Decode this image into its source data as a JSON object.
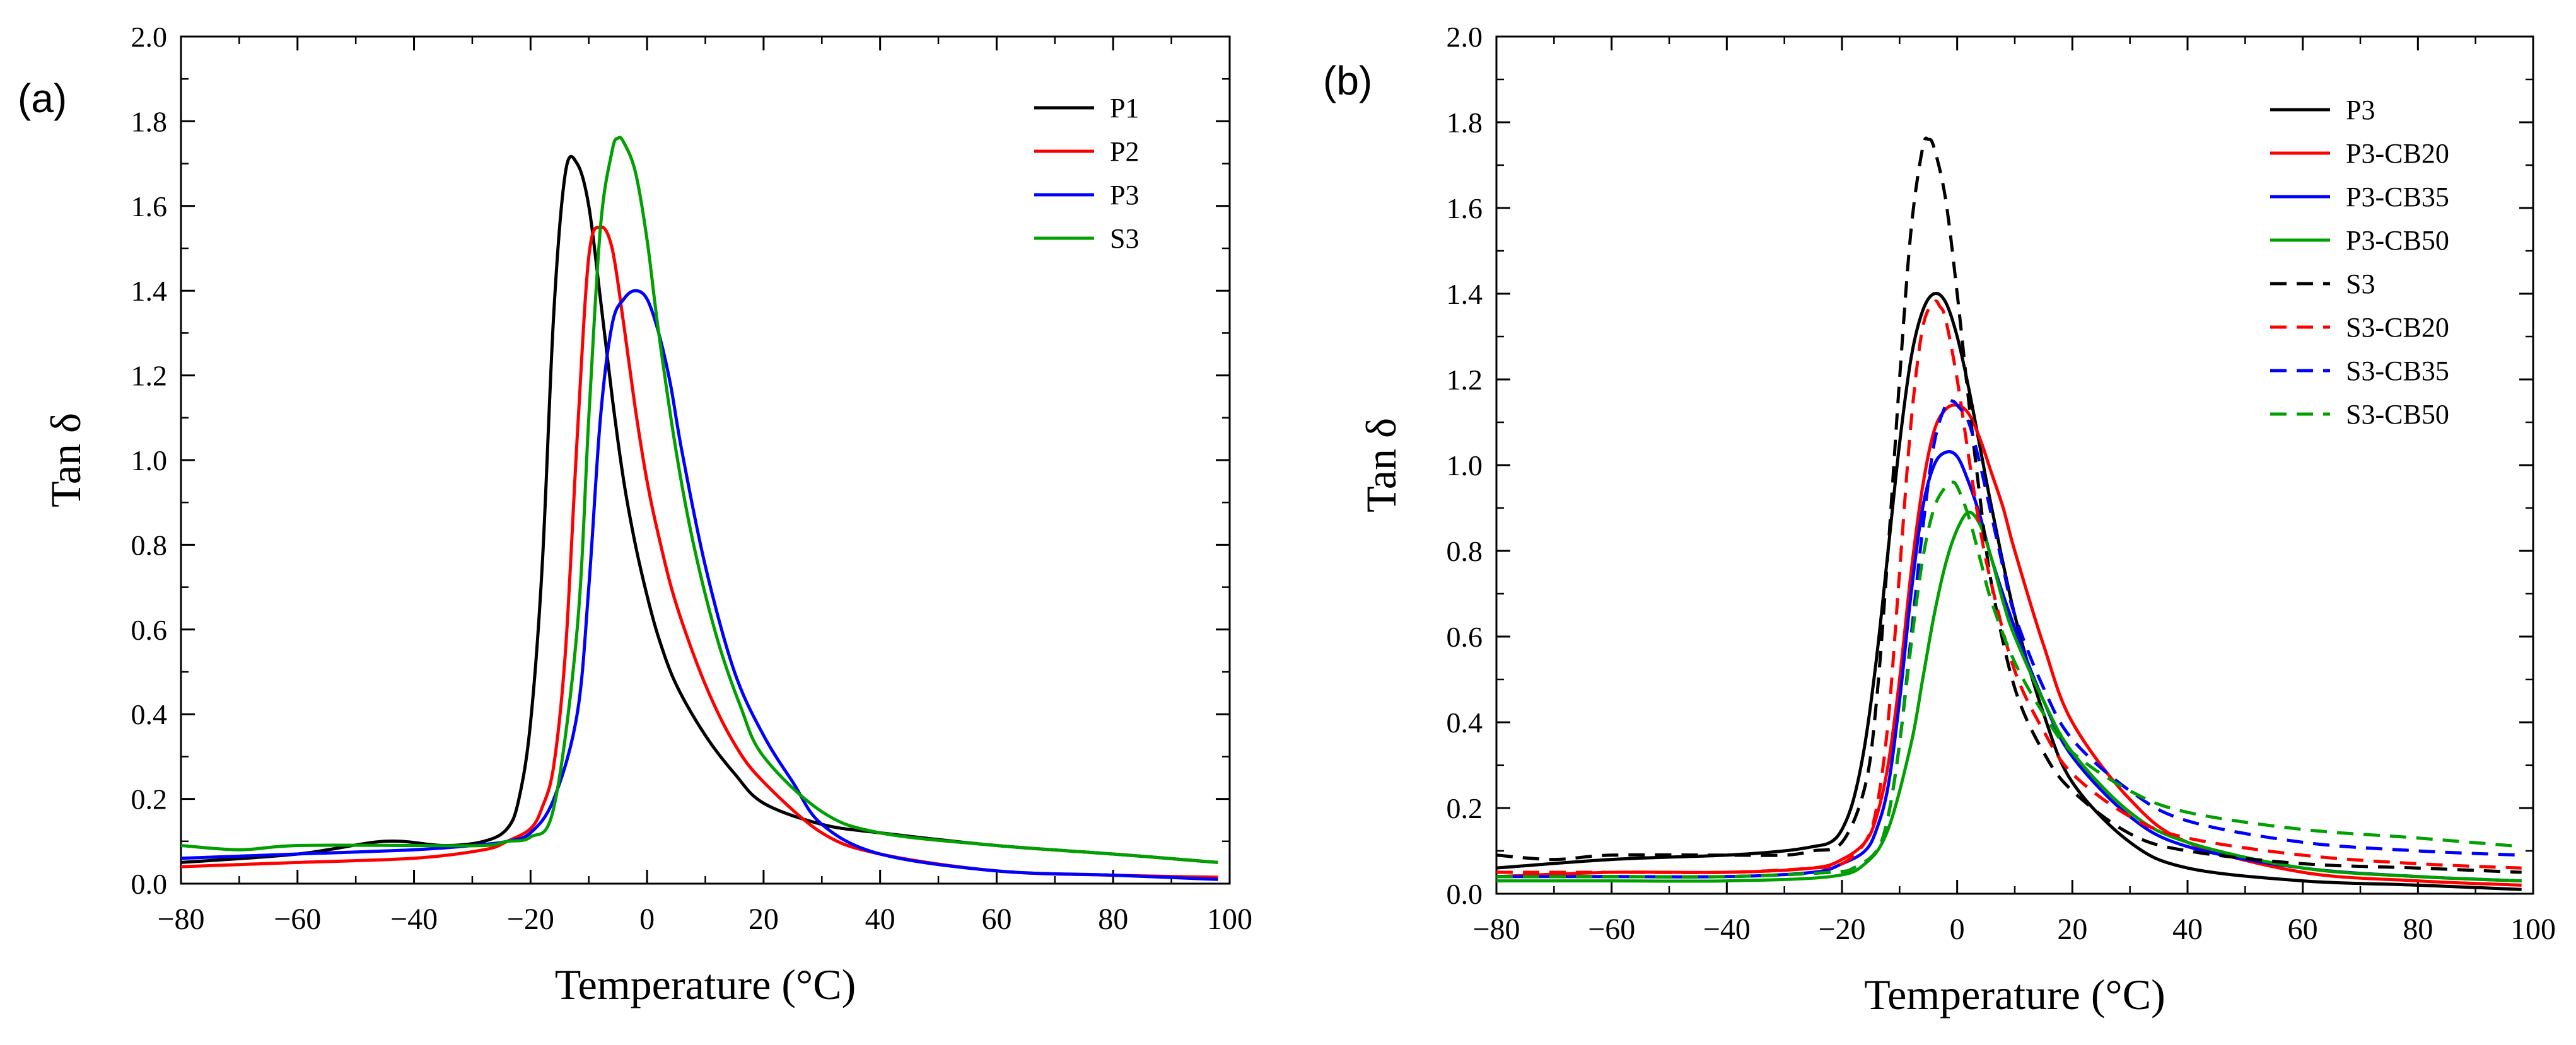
{
  "chart_data": [
    {
      "type": "line",
      "panel_label": "(a)",
      "xlabel": "Temperature (°C)",
      "ylabel": "Tan δ",
      "xlim": [
        -80,
        100
      ],
      "ylim": [
        0,
        2.0
      ],
      "xticks": [
        "−80",
        "−60",
        "−40",
        "−20",
        "0",
        "20",
        "40",
        "60",
        "80",
        "100"
      ],
      "yticks": [
        "0.0",
        "0.2",
        "0.4",
        "0.6",
        "0.8",
        "1.0",
        "1.2",
        "1.4",
        "1.6",
        "1.8",
        "2.0"
      ],
      "legend_position": "top-right",
      "series": [
        {
          "name": "P1",
          "color": "#000000",
          "dash": false,
          "x": [
            -80,
            -60,
            -45,
            -35,
            -28,
            -24,
            -22,
            -20,
            -18,
            -16,
            -14,
            -12,
            -10,
            -8,
            -6,
            -4,
            -2,
            0,
            2,
            5,
            10,
            15,
            20,
            30,
            40,
            60,
            80,
            98
          ],
          "y": [
            0.05,
            0.07,
            0.1,
            0.09,
            0.1,
            0.13,
            0.2,
            0.38,
            0.75,
            1.35,
            1.68,
            1.7,
            1.6,
            1.38,
            1.15,
            0.95,
            0.8,
            0.68,
            0.58,
            0.47,
            0.35,
            0.26,
            0.19,
            0.14,
            0.12,
            0.09,
            0.07,
            0.05
          ]
        },
        {
          "name": "P2",
          "color": "#ff0000",
          "dash": false,
          "x": [
            -80,
            -60,
            -40,
            -28,
            -24,
            -20,
            -18,
            -16,
            -14,
            -12,
            -10,
            -8,
            -6,
            -4,
            -2,
            0,
            2,
            5,
            10,
            15,
            20,
            30,
            40,
            60,
            80,
            98
          ],
          "y": [
            0.04,
            0.05,
            0.06,
            0.08,
            0.1,
            0.13,
            0.18,
            0.28,
            0.55,
            1.05,
            1.48,
            1.55,
            1.5,
            1.32,
            1.12,
            0.95,
            0.82,
            0.66,
            0.47,
            0.33,
            0.24,
            0.12,
            0.07,
            0.03,
            0.02,
            0.015
          ]
        },
        {
          "name": "P3",
          "color": "#0000ff",
          "dash": false,
          "x": [
            -80,
            -60,
            -40,
            -30,
            -24,
            -20,
            -16,
            -12,
            -10,
            -8,
            -6,
            -4,
            -2,
            0,
            2,
            4,
            6,
            10,
            15,
            20,
            25,
            30,
            40,
            60,
            80,
            98
          ],
          "y": [
            0.06,
            0.07,
            0.08,
            0.09,
            0.1,
            0.12,
            0.2,
            0.4,
            0.7,
            1.1,
            1.32,
            1.38,
            1.4,
            1.38,
            1.3,
            1.18,
            1.02,
            0.75,
            0.5,
            0.35,
            0.24,
            0.14,
            0.07,
            0.03,
            0.02,
            0.01
          ]
        },
        {
          "name": "S3",
          "color": "#00a000",
          "dash": false,
          "x": [
            -80,
            -70,
            -60,
            -40,
            -28,
            -24,
            -20,
            -16,
            -12,
            -10,
            -8,
            -6,
            -5,
            -4,
            -2,
            0,
            2,
            5,
            8,
            12,
            16,
            20,
            30,
            40,
            60,
            80,
            98
          ],
          "y": [
            0.09,
            0.08,
            0.09,
            0.09,
            0.09,
            0.1,
            0.11,
            0.18,
            0.6,
            1.1,
            1.55,
            1.73,
            1.76,
            1.75,
            1.68,
            1.52,
            1.3,
            1.02,
            0.8,
            0.58,
            0.42,
            0.3,
            0.17,
            0.12,
            0.09,
            0.07,
            0.05
          ]
        }
      ]
    },
    {
      "type": "line",
      "panel_label": "(b)",
      "xlabel": "Temperature (°C)",
      "ylabel": "Tan δ",
      "xlim": [
        -80,
        100
      ],
      "ylim": [
        0,
        2.0
      ],
      "xticks": [
        "−80",
        "−60",
        "−40",
        "−20",
        "0",
        "20",
        "40",
        "60",
        "80",
        "100"
      ],
      "yticks": [
        "0.0",
        "0.2",
        "0.4",
        "0.6",
        "0.8",
        "1.0",
        "1.2",
        "1.4",
        "1.6",
        "1.8",
        "2.0"
      ],
      "legend_position": "top-right",
      "series": [
        {
          "name": "P3",
          "color": "#000000",
          "dash": false,
          "x": [
            -80,
            -60,
            -40,
            -30,
            -25,
            -22,
            -20,
            -18,
            -16,
            -14,
            -12,
            -10,
            -8,
            -6,
            -4,
            -2,
            0,
            2,
            4,
            6,
            10,
            15,
            20,
            30,
            40,
            60,
            80,
            98
          ],
          "y": [
            0.06,
            0.08,
            0.09,
            0.1,
            0.11,
            0.12,
            0.15,
            0.22,
            0.35,
            0.55,
            0.8,
            1.05,
            1.25,
            1.36,
            1.4,
            1.38,
            1.3,
            1.18,
            1.04,
            0.9,
            0.65,
            0.42,
            0.26,
            0.12,
            0.06,
            0.03,
            0.02,
            0.01
          ]
        },
        {
          "name": "P3-CB20",
          "color": "#ff0000",
          "dash": false,
          "x": [
            -80,
            -60,
            -40,
            -25,
            -20,
            -16,
            -14,
            -12,
            -10,
            -8,
            -6,
            -4,
            -2,
            0,
            2,
            4,
            6,
            8,
            10,
            15,
            20,
            30,
            40,
            60,
            80,
            98
          ],
          "y": [
            0.04,
            0.05,
            0.05,
            0.06,
            0.08,
            0.12,
            0.18,
            0.3,
            0.5,
            0.75,
            0.95,
            1.08,
            1.13,
            1.14,
            1.12,
            1.06,
            0.98,
            0.9,
            0.8,
            0.58,
            0.4,
            0.22,
            0.12,
            0.05,
            0.03,
            0.02
          ]
        },
        {
          "name": "P3-CB35",
          "color": "#0000ff",
          "dash": false,
          "x": [
            -80,
            -60,
            -40,
            -25,
            -20,
            -16,
            -14,
            -12,
            -10,
            -8,
            -6,
            -4,
            -2,
            0,
            2,
            4,
            6,
            10,
            15,
            20,
            30,
            40,
            60,
            80,
            98
          ],
          "y": [
            0.04,
            0.04,
            0.04,
            0.05,
            0.07,
            0.1,
            0.15,
            0.25,
            0.45,
            0.7,
            0.9,
            1.0,
            1.03,
            1.02,
            0.96,
            0.88,
            0.78,
            0.62,
            0.45,
            0.32,
            0.18,
            0.11,
            0.06,
            0.04,
            0.03
          ]
        },
        {
          "name": "P3-CB50",
          "color": "#00a000",
          "dash": false,
          "x": [
            -80,
            -60,
            -40,
            -22,
            -16,
            -12,
            -8,
            -6,
            -4,
            -2,
            0,
            2,
            4,
            6,
            8,
            10,
            15,
            20,
            30,
            40,
            60,
            80,
            98
          ],
          "y": [
            0.03,
            0.03,
            0.03,
            0.04,
            0.07,
            0.15,
            0.35,
            0.5,
            0.65,
            0.77,
            0.85,
            0.89,
            0.86,
            0.78,
            0.68,
            0.6,
            0.45,
            0.33,
            0.19,
            0.12,
            0.06,
            0.04,
            0.03
          ]
        },
        {
          "name": "S3",
          "color": "#000000",
          "dash": true,
          "x": [
            -80,
            -70,
            -60,
            -40,
            -30,
            -25,
            -20,
            -16,
            -14,
            -12,
            -10,
            -8,
            -6,
            -5,
            -4,
            -2,
            0,
            2,
            4,
            6,
            10,
            15,
            20,
            30,
            40,
            60,
            80,
            98
          ],
          "y": [
            0.09,
            0.08,
            0.09,
            0.09,
            0.09,
            0.1,
            0.12,
            0.25,
            0.45,
            0.8,
            1.2,
            1.55,
            1.74,
            1.76,
            1.74,
            1.62,
            1.4,
            1.15,
            0.92,
            0.72,
            0.48,
            0.33,
            0.24,
            0.14,
            0.1,
            0.07,
            0.06,
            0.05
          ]
        },
        {
          "name": "S3-CB20",
          "color": "#ff0000",
          "dash": true,
          "x": [
            -80,
            -60,
            -40,
            -25,
            -20,
            -16,
            -14,
            -12,
            -10,
            -8,
            -6,
            -4,
            -3,
            -2,
            0,
            2,
            4,
            6,
            10,
            15,
            20,
            30,
            40,
            60,
            80,
            98
          ],
          "y": [
            0.05,
            0.05,
            0.05,
            0.06,
            0.07,
            0.12,
            0.2,
            0.4,
            0.75,
            1.1,
            1.32,
            1.38,
            1.37,
            1.34,
            1.2,
            1.02,
            0.85,
            0.72,
            0.52,
            0.38,
            0.28,
            0.18,
            0.13,
            0.09,
            0.07,
            0.06
          ]
        },
        {
          "name": "S3-CB35",
          "color": "#0000ff",
          "dash": true,
          "x": [
            -80,
            -60,
            -40,
            -22,
            -18,
            -14,
            -12,
            -10,
            -8,
            -6,
            -4,
            -2,
            -1,
            0,
            2,
            4,
            6,
            8,
            10,
            15,
            20,
            30,
            40,
            60,
            80,
            98
          ],
          "y": [
            0.04,
            0.04,
            0.04,
            0.05,
            0.06,
            0.1,
            0.18,
            0.35,
            0.6,
            0.85,
            1.05,
            1.14,
            1.15,
            1.14,
            1.1,
            1.0,
            0.88,
            0.76,
            0.65,
            0.48,
            0.36,
            0.24,
            0.17,
            0.12,
            0.1,
            0.09
          ]
        },
        {
          "name": "S3-CB50",
          "color": "#00a000",
          "dash": true,
          "x": [
            -80,
            -60,
            -40,
            -22,
            -18,
            -14,
            -12,
            -10,
            -8,
            -6,
            -4,
            -2,
            -1,
            0,
            2,
            4,
            6,
            10,
            15,
            20,
            30,
            40,
            60,
            80,
            98
          ],
          "y": [
            0.04,
            0.04,
            0.04,
            0.05,
            0.06,
            0.1,
            0.18,
            0.35,
            0.58,
            0.78,
            0.9,
            0.95,
            0.96,
            0.95,
            0.88,
            0.78,
            0.68,
            0.54,
            0.42,
            0.33,
            0.24,
            0.19,
            0.15,
            0.13,
            0.11
          ]
        }
      ]
    }
  ]
}
